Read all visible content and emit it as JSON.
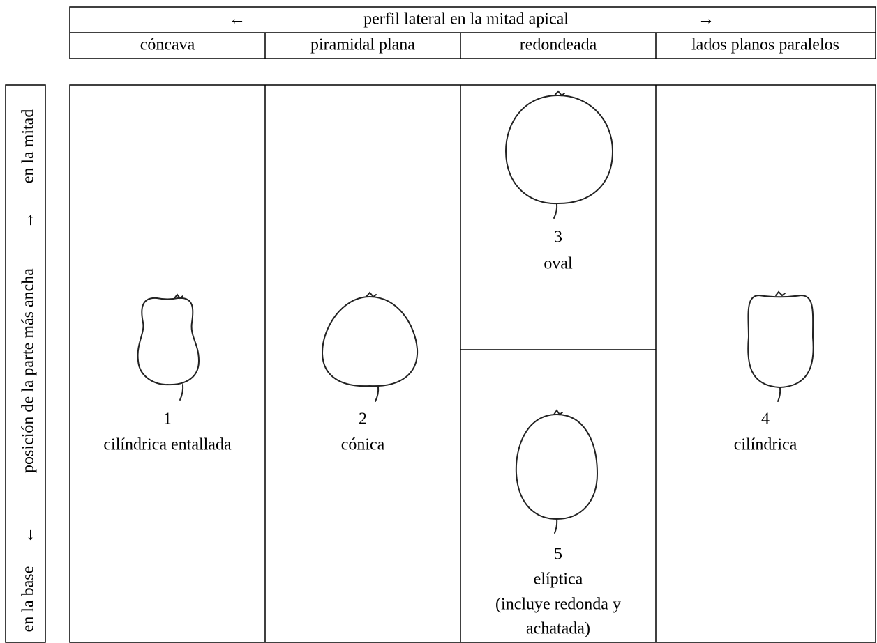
{
  "header": {
    "arrow_left": "←",
    "title": "perfil lateral en la mitad apical",
    "arrow_right": "→",
    "columns": [
      "cóncava",
      "piramidal plana",
      "redondeada",
      "lados planos paralelos"
    ]
  },
  "side_label": {
    "bottom": "en la base",
    "arrow_down": "←",
    "middle": "posición de la parte más ancha",
    "arrow_up": "→",
    "top": "en la mitad"
  },
  "cells": [
    {
      "number": "1",
      "lines": [
        "cilíndrica entallada"
      ]
    },
    {
      "number": "2",
      "lines": [
        "cónica"
      ]
    },
    {
      "number": "3",
      "lines": [
        "oval"
      ]
    },
    {
      "number": "4",
      "lines": [
        "cilíndrica"
      ]
    },
    {
      "number": "5",
      "lines": [
        "elíptica",
        "(incluye redonda y",
        "achatada)"
      ]
    }
  ]
}
